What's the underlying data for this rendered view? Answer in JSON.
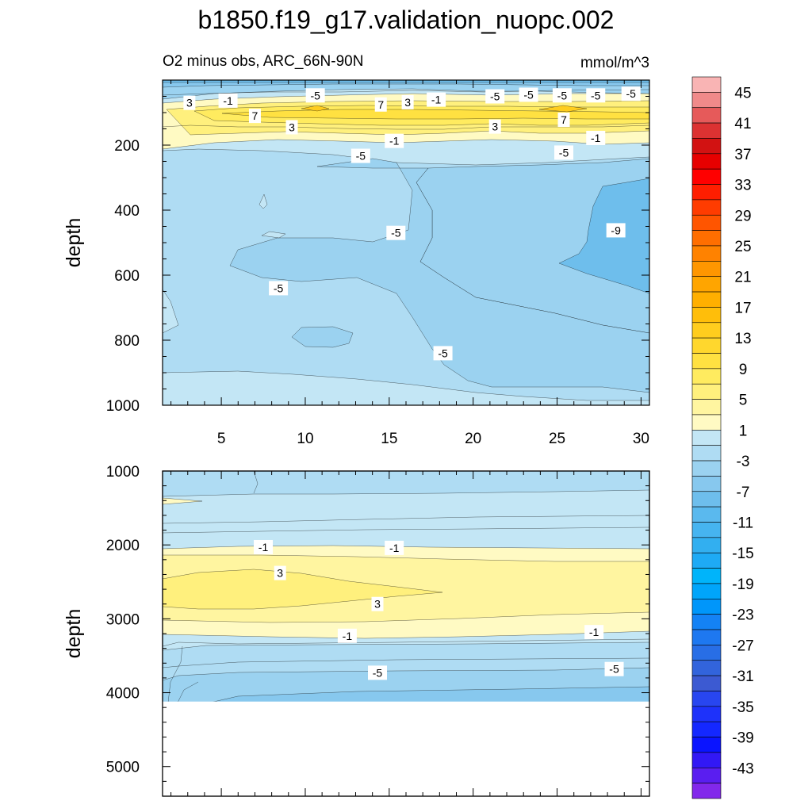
{
  "chart_data": {
    "type": "contour",
    "title": "b1850.f19_g17.validation_nuopc.002",
    "subtitle_left": "O2 minus obs, ARC_66N-90N",
    "units": "mmol/m^3",
    "ylabel": "depth",
    "panels": [
      {
        "name": "upper",
        "ylim": [
          0,
          1000
        ],
        "xlim": [
          1.5,
          30.5
        ],
        "xticks": [
          "5",
          "10",
          "15",
          "20",
          "25",
          "30"
        ],
        "yticks": [
          "200",
          "400",
          "600",
          "800",
          "1000"
        ],
        "contour_labels": [
          {
            "text": "3",
            "x": 3.1,
            "y": 70
          },
          {
            "text": "-1",
            "x": 5.4,
            "y": 63
          },
          {
            "text": "-5",
            "x": 10.6,
            "y": 47
          },
          {
            "text": "7",
            "x": 14.5,
            "y": 75
          },
          {
            "text": "3",
            "x": 16.1,
            "y": 68
          },
          {
            "text": "-1",
            "x": 17.8,
            "y": 60
          },
          {
            "text": "-5",
            "x": 21.3,
            "y": 50
          },
          {
            "text": "-5",
            "x": 23.3,
            "y": 45
          },
          {
            "text": "-5",
            "x": 25.3,
            "y": 47
          },
          {
            "text": "-5",
            "x": 27.3,
            "y": 47
          },
          {
            "text": "-5",
            "x": 29.4,
            "y": 42
          },
          {
            "text": "7",
            "x": 7.0,
            "y": 110
          },
          {
            "text": "3",
            "x": 9.2,
            "y": 145
          },
          {
            "text": "3",
            "x": 21.3,
            "y": 143
          },
          {
            "text": "7",
            "x": 25.4,
            "y": 122
          },
          {
            "text": "-1",
            "x": 15.3,
            "y": 187
          },
          {
            "text": "-1",
            "x": 27.3,
            "y": 178
          },
          {
            "text": "-5",
            "x": 13.3,
            "y": 233
          },
          {
            "text": "-5",
            "x": 25.4,
            "y": 223
          },
          {
            "text": "-5",
            "x": 15.4,
            "y": 470
          },
          {
            "text": "-9",
            "x": 28.5,
            "y": 462
          },
          {
            "text": "-5",
            "x": 8.4,
            "y": 640
          },
          {
            "text": "-5",
            "x": 18.2,
            "y": 840
          }
        ]
      },
      {
        "name": "lower",
        "ylim": [
          1000,
          5400
        ],
        "xlim": [
          1.5,
          30.5
        ],
        "yticks": [
          "1000",
          "2000",
          "3000",
          "4000",
          "5000"
        ],
        "data_bottom_depth": 4120,
        "contour_labels": [
          {
            "text": "-1",
            "x": 7.5,
            "y": 2030
          },
          {
            "text": "-1",
            "x": 15.3,
            "y": 2040
          },
          {
            "text": "3",
            "x": 8.5,
            "y": 2380
          },
          {
            "text": "3",
            "x": 14.3,
            "y": 2800
          },
          {
            "text": "-1",
            "x": 12.5,
            "y": 3230
          },
          {
            "text": "-1",
            "x": 27.2,
            "y": 3180
          },
          {
            "text": "-5",
            "x": 14.3,
            "y": 3730
          },
          {
            "text": "-5",
            "x": 28.4,
            "y": 3680
          }
        ]
      }
    ],
    "colorbar": {
      "labels": [
        "45",
        "41",
        "37",
        "33",
        "29",
        "25",
        "21",
        "17",
        "13",
        "9",
        "5",
        "1",
        "-3",
        "-7",
        "-11",
        "-15",
        "-19",
        "-23",
        "-27",
        "-31",
        "-35",
        "-39",
        "-43"
      ],
      "colors": [
        "#f9b4b4",
        "#f08a8a",
        "#e65a5a",
        "#dc3232",
        "#d21212",
        "#e60000",
        "#ff0000",
        "#ff1e00",
        "#ff3c00",
        "#ff5500",
        "#ff6e00",
        "#ff8200",
        "#ff9600",
        "#ffa500",
        "#ffaf00",
        "#ffbe0a",
        "#ffcd1e",
        "#ffd72d",
        "#ffe141",
        "#ffeb5f",
        "#fff07d",
        "#fff5a0",
        "#fffac3",
        "#c3e6f5",
        "#afdcf3",
        "#9bd2f0",
        "#87c8ee",
        "#6ebeec",
        "#5ab9ee",
        "#46b4f0",
        "#32aff0",
        "#1eaaf5",
        "#00b4fa",
        "#00a5fa",
        "#0096fa",
        "#1482f5",
        "#1e78f0",
        "#286ee6",
        "#3264dc",
        "#3c5ad2",
        "#2846f0",
        "#1e32fa",
        "#1428ff",
        "#0a14ff",
        "#3218f5",
        "#5a1ef0",
        "#8228eb"
      ]
    }
  }
}
